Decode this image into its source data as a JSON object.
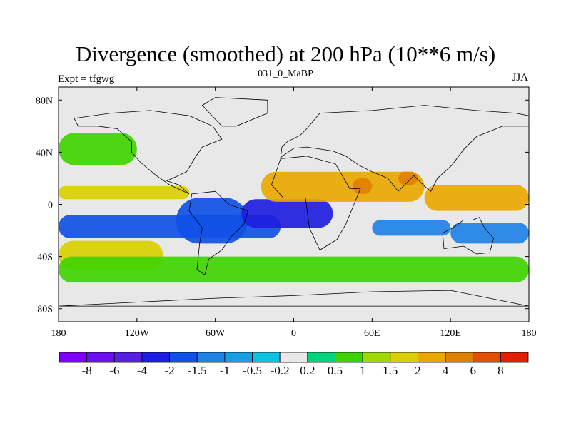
{
  "chart_data": {
    "type": "heatmap",
    "title": "Divergence (smoothed) at 200 hPa (10**6 m/s)",
    "subtitle_left": "Expt = tfgwg",
    "subtitle_center": "031_0_MaBP",
    "subtitle_right": "JJA",
    "xlim": [
      -180,
      180
    ],
    "ylim": [
      -90,
      90
    ],
    "x_ticks": [
      {
        "value": -180,
        "label": "180"
      },
      {
        "value": -120,
        "label": "120W"
      },
      {
        "value": -60,
        "label": "60W"
      },
      {
        "value": 0,
        "label": "0"
      },
      {
        "value": 60,
        "label": "60E"
      },
      {
        "value": 120,
        "label": "120E"
      },
      {
        "value": 180,
        "label": "180"
      }
    ],
    "y_ticks": [
      {
        "value": 80,
        "label": "80N"
      },
      {
        "value": 40,
        "label": "40N"
      },
      {
        "value": 0,
        "label": "0"
      },
      {
        "value": -40,
        "label": "40S"
      },
      {
        "value": -80,
        "label": "80S"
      }
    ],
    "colorbar": {
      "colors": [
        "#7f00ff",
        "#6a10ef",
        "#5520e0",
        "#1e1ee0",
        "#1050e6",
        "#1e82e6",
        "#16a0e0",
        "#10c0e0",
        "#e8e8e8",
        "#00d27e",
        "#40d200",
        "#a0d800",
        "#d8d000",
        "#e8a800",
        "#e08000",
        "#e05000",
        "#e02000"
      ],
      "labels": [
        "-8",
        "-6",
        "-4",
        "-2",
        "-1.5",
        "-1",
        "-0.5",
        "-0.2",
        "0.2",
        "0.5",
        "1",
        "1.5",
        "2",
        "4",
        "6",
        "8"
      ]
    },
    "features": [
      {
        "name": "tropical-convergence-band",
        "lon": [
          -180,
          -10
        ],
        "lat": [
          -26,
          -8
        ],
        "value": -1.6
      },
      {
        "name": "south-america-convergence",
        "lon": [
          -90,
          -35
        ],
        "lat": [
          -30,
          5
        ],
        "value": -2.0
      },
      {
        "name": "atlantic-convergence",
        "lon": [
          -40,
          30
        ],
        "lat": [
          -18,
          4
        ],
        "value": -2.4
      },
      {
        "name": "indian-ocean-convergence",
        "lon": [
          60,
          120
        ],
        "lat": [
          -24,
          -12
        ],
        "value": -1.2
      },
      {
        "name": "west-pacific-convergence",
        "lon": [
          120,
          180
        ],
        "lat": [
          -30,
          -14
        ],
        "value": -1.4
      },
      {
        "name": "itcz-divergence-pacific",
        "lon": [
          -180,
          -80
        ],
        "lat": [
          4,
          14
        ],
        "value": 1.5
      },
      {
        "name": "south-pacific-divergence",
        "lon": [
          -180,
          -100
        ],
        "lat": [
          -50,
          -28
        ],
        "value": 1.8
      },
      {
        "name": "north-africa-asia-divergence",
        "lon": [
          -25,
          100
        ],
        "lat": [
          2,
          25
        ],
        "value": 2.5
      },
      {
        "name": "india-divergence-max",
        "lon": [
          80,
          95
        ],
        "lat": [
          15,
          25
        ],
        "value": 5.0
      },
      {
        "name": "arabia-divergence-max",
        "lon": [
          45,
          60
        ],
        "lat": [
          8,
          20
        ],
        "value": 4.2
      },
      {
        "name": "maritime-divergence",
        "lon": [
          100,
          180
        ],
        "lat": [
          -5,
          15
        ],
        "value": 2.0
      },
      {
        "name": "southern-ocean-divergence",
        "lon": [
          -180,
          180
        ],
        "lat": [
          -60,
          -40
        ],
        "value": 0.8
      },
      {
        "name": "north-pacific-divergence",
        "lon": [
          -180,
          -120
        ],
        "lat": [
          30,
          55
        ],
        "value": 0.8
      }
    ]
  }
}
